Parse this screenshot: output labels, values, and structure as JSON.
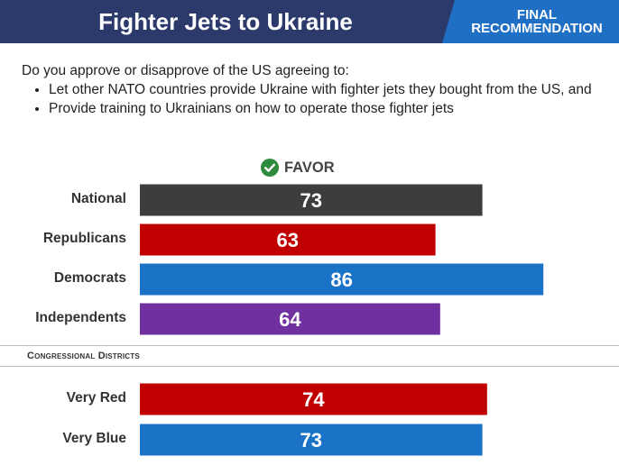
{
  "header": {
    "title": "Fighter Jets to Ukraine",
    "badge_line1": "FINAL",
    "badge_line2": "RECOMMENDATION"
  },
  "question": {
    "intro": "Do you approve or disapprove of the US agreeing to:",
    "bullets": [
      "Let other NATO countries provide Ukraine with fighter jets they bought from the US, and",
      "Provide training to Ukrainians on how to operate those fighter jets"
    ]
  },
  "chart_data": {
    "type": "bar",
    "orientation": "horizontal",
    "title": "FAVOR",
    "groups": [
      {
        "name": "",
        "categories": [
          "National",
          "Republicans",
          "Democrats",
          "Independents"
        ],
        "values": [
          73,
          63,
          86,
          64
        ]
      },
      {
        "name": "Congressional Districts",
        "categories": [
          "Very Red",
          "Very Blue"
        ],
        "values": [
          74,
          73
        ]
      }
    ],
    "bar_colors": [
      "#3d3d3d",
      "#c00000",
      "#1a73c7",
      "#7030a0",
      "#c00000",
      "#1a73c7"
    ],
    "xlim": [
      0,
      100
    ],
    "grid": false,
    "legend": "none"
  }
}
